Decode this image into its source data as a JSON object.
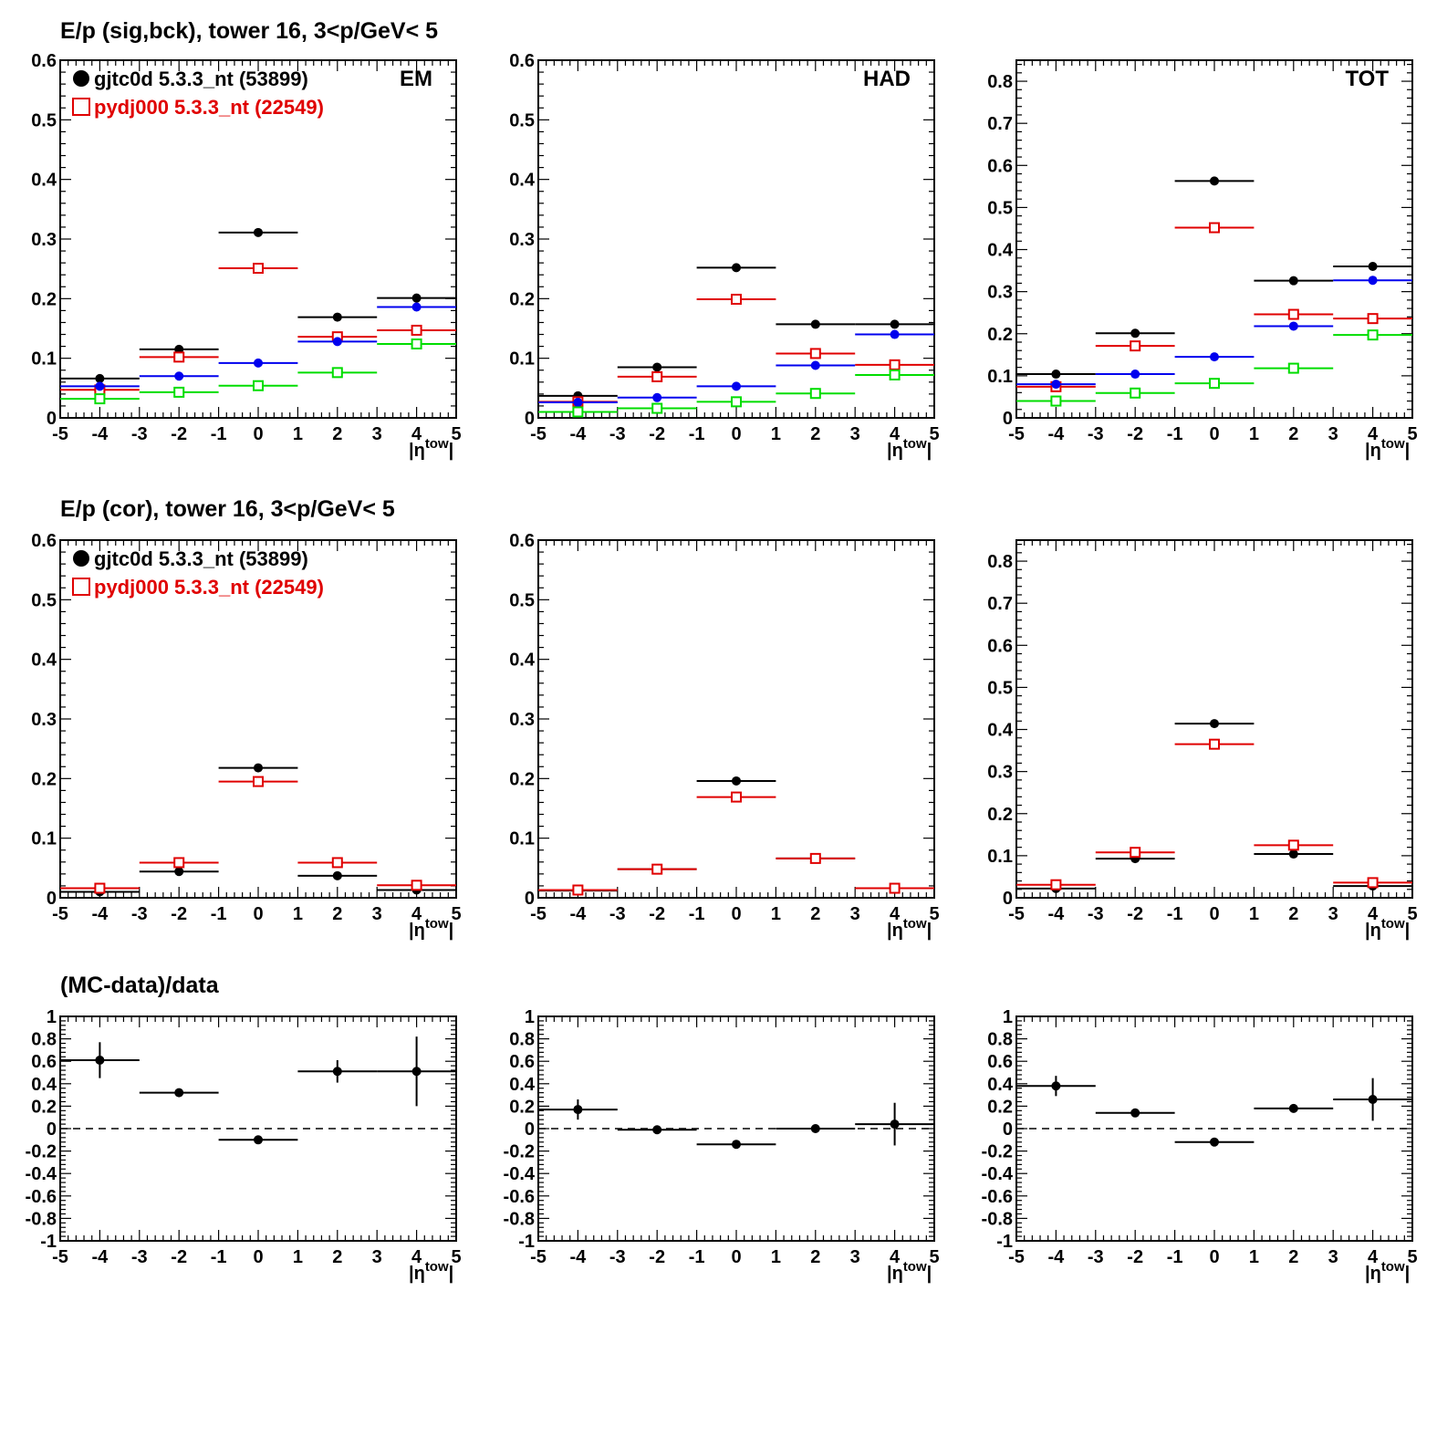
{
  "row_titles": [
    "E/p (sig,bck), tower 16,  3<p/GeV< 5",
    "E/p (cor), tower 16,  3<p/GeV< 5",
    "(MC-data)/data"
  ],
  "legend": {
    "data_label": "gjtc0d 5.3.3_nt (53899)",
    "mc_label": "pydj000 5.3.3_nt (22549)"
  },
  "colors": {
    "data": "#000000",
    "mc": "#e00000",
    "blue": "#0000ee",
    "green": "#00dd00"
  },
  "chart_data": [
    {
      "type": "scatter",
      "row": 0,
      "col": 0,
      "panel_label": "EM",
      "xlabel": "|ηtow|",
      "xlim": [
        -5,
        5
      ],
      "ylim": [
        0,
        0.6
      ],
      "x_ticks": [
        -5,
        -4,
        -3,
        -2,
        -1,
        0,
        1,
        2,
        3,
        4,
        5
      ],
      "y_ticks": [
        "0",
        "0.1",
        "0.2",
        "0.3",
        "0.4",
        "0.5",
        "0.6"
      ],
      "x": [
        -4,
        -2,
        0,
        2,
        4
      ],
      "bin_half_width": 1,
      "series": [
        {
          "name": "gjtc0d 5.3.3_nt (53899)",
          "color": "#000000",
          "marker": "dot",
          "values": [
            0.066,
            0.115,
            0.311,
            0.169,
            0.201
          ]
        },
        {
          "name": "pydj000 5.3.3_nt (22549)",
          "color": "#e00000",
          "marker": "square",
          "values": [
            0.047,
            0.102,
            0.251,
            0.136,
            0.147
          ]
        },
        {
          "color": "#0000ee",
          "marker": "dot",
          "values": [
            0.053,
            0.07,
            0.092,
            0.128,
            0.186
          ]
        },
        {
          "color": "#00dd00",
          "marker": "square",
          "values": [
            0.032,
            0.043,
            0.054,
            0.076,
            0.124
          ]
        }
      ]
    },
    {
      "type": "scatter",
      "row": 0,
      "col": 1,
      "panel_label": "HAD",
      "xlabel": "|ηtow|",
      "xlim": [
        -5,
        5
      ],
      "ylim": [
        0,
        0.6
      ],
      "x_ticks": [
        -5,
        -4,
        -3,
        -2,
        -1,
        0,
        1,
        2,
        3,
        4,
        5
      ],
      "y_ticks": [
        "0",
        "0.1",
        "0.2",
        "0.3",
        "0.4",
        "0.5",
        "0.6"
      ],
      "x": [
        -4,
        -2,
        0,
        2,
        4
      ],
      "bin_half_width": 1,
      "series": [
        {
          "color": "#000000",
          "marker": "dot",
          "values": [
            0.037,
            0.085,
            0.252,
            0.157,
            0.157
          ]
        },
        {
          "color": "#e00000",
          "marker": "square",
          "values": [
            0.027,
            0.069,
            0.199,
            0.108,
            0.089
          ]
        },
        {
          "color": "#0000ee",
          "marker": "dot",
          "values": [
            0.026,
            0.034,
            0.053,
            0.088,
            0.14
          ]
        },
        {
          "color": "#00dd00",
          "marker": "square",
          "values": [
            0.01,
            0.016,
            0.027,
            0.041,
            0.072
          ]
        }
      ]
    },
    {
      "type": "scatter",
      "row": 0,
      "col": 2,
      "panel_label": "TOT",
      "xlabel": "|ηtow|",
      "xlim": [
        -5,
        5
      ],
      "ylim": [
        0,
        0.85
      ],
      "x_ticks": [
        -5,
        -4,
        -3,
        -2,
        -1,
        0,
        1,
        2,
        3,
        4,
        5
      ],
      "y_ticks": [
        "0",
        "0.1",
        "0.2",
        "0.3",
        "0.4",
        "0.5",
        "0.6",
        "0.7",
        "0.8"
      ],
      "x": [
        -4,
        -2,
        0,
        2,
        4
      ],
      "bin_half_width": 1,
      "series": [
        {
          "color": "#000000",
          "marker": "dot",
          "values": [
            0.104,
            0.201,
            0.563,
            0.326,
            0.36
          ]
        },
        {
          "color": "#e00000",
          "marker": "square",
          "values": [
            0.074,
            0.171,
            0.452,
            0.246,
            0.236
          ]
        },
        {
          "color": "#0000ee",
          "marker": "dot",
          "values": [
            0.08,
            0.104,
            0.145,
            0.218,
            0.327
          ]
        },
        {
          "color": "#00dd00",
          "marker": "square",
          "values": [
            0.04,
            0.059,
            0.082,
            0.118,
            0.197
          ]
        }
      ]
    },
    {
      "type": "scatter",
      "row": 1,
      "col": 0,
      "xlabel": "|ηtow|",
      "xlim": [
        -5,
        5
      ],
      "ylim": [
        0,
        0.6
      ],
      "x_ticks": [
        -5,
        -4,
        -3,
        -2,
        -1,
        0,
        1,
        2,
        3,
        4,
        5
      ],
      "y_ticks": [
        "0",
        "0.1",
        "0.2",
        "0.3",
        "0.4",
        "0.5",
        "0.6"
      ],
      "x": [
        -4,
        -2,
        0,
        2,
        4
      ],
      "bin_half_width": 1,
      "series": [
        {
          "name": "gjtc0d 5.3.3_nt (53899)",
          "color": "#000000",
          "marker": "dot",
          "values": [
            0.01,
            0.044,
            0.218,
            0.037,
            0.013
          ]
        },
        {
          "name": "pydj000 5.3.3_nt (22549)",
          "color": "#e00000",
          "marker": "square",
          "values": [
            0.016,
            0.059,
            0.195,
            0.059,
            0.021
          ]
        }
      ]
    },
    {
      "type": "scatter",
      "row": 1,
      "col": 1,
      "xlabel": "|ηtow|",
      "xlim": [
        -5,
        5
      ],
      "ylim": [
        0,
        0.6
      ],
      "x_ticks": [
        -5,
        -4,
        -3,
        -2,
        -1,
        0,
        1,
        2,
        3,
        4,
        5
      ],
      "y_ticks": [
        "0",
        "0.1",
        "0.2",
        "0.3",
        "0.4",
        "0.5",
        "0.6"
      ],
      "x": [
        -4,
        -2,
        0,
        2,
        4
      ],
      "bin_half_width": 1,
      "series": [
        {
          "color": "#000000",
          "marker": "dot",
          "values": [
            0.012,
            0.048,
            0.196,
            0.066,
            0.016
          ]
        },
        {
          "color": "#e00000",
          "marker": "square",
          "values": [
            0.013,
            0.048,
            0.169,
            0.066,
            0.016
          ]
        }
      ]
    },
    {
      "type": "scatter",
      "row": 1,
      "col": 2,
      "xlabel": "|ηtow|",
      "xlim": [
        -5,
        5
      ],
      "ylim": [
        0,
        0.85
      ],
      "x_ticks": [
        -5,
        -4,
        -3,
        -2,
        -1,
        0,
        1,
        2,
        3,
        4,
        5
      ],
      "y_ticks": [
        "0",
        "0.1",
        "0.2",
        "0.3",
        "0.4",
        "0.5",
        "0.6",
        "0.7",
        "0.8"
      ],
      "x": [
        -4,
        -2,
        0,
        2,
        4
      ],
      "bin_half_width": 1,
      "series": [
        {
          "color": "#000000",
          "marker": "dot",
          "values": [
            0.022,
            0.093,
            0.414,
            0.104,
            0.028
          ]
        },
        {
          "color": "#e00000",
          "marker": "square",
          "values": [
            0.031,
            0.108,
            0.365,
            0.125,
            0.036
          ]
        }
      ]
    },
    {
      "type": "scatter",
      "row": 2,
      "col": 0,
      "xlabel": "|ηtow|",
      "xlim": [
        -5,
        5
      ],
      "ylim": [
        -1,
        1
      ],
      "zero_line": true,
      "x_ticks": [
        -5,
        -4,
        -3,
        -2,
        -1,
        0,
        1,
        2,
        3,
        4,
        5
      ],
      "y_ticks": [
        "-1",
        "-0.8",
        "-0.6",
        "-0.4",
        "-0.2",
        "0",
        "0.2",
        "0.4",
        "0.6",
        "0.8",
        "1"
      ],
      "x": [
        -4,
        -2,
        0,
        2,
        4
      ],
      "bin_half_width": 1,
      "series": [
        {
          "color": "#000000",
          "marker": "dot",
          "values": [
            0.61,
            0.32,
            -0.1,
            0.51,
            0.51
          ],
          "errors": [
            0.16,
            0.03,
            0.02,
            0.1,
            0.31
          ]
        }
      ]
    },
    {
      "type": "scatter",
      "row": 2,
      "col": 1,
      "xlabel": "|ηtow|",
      "xlim": [
        -5,
        5
      ],
      "ylim": [
        -1,
        1
      ],
      "zero_line": true,
      "x_ticks": [
        -5,
        -4,
        -3,
        -2,
        -1,
        0,
        1,
        2,
        3,
        4,
        5
      ],
      "y_ticks": [
        "-1",
        "-0.8",
        "-0.6",
        "-0.4",
        "-0.2",
        "0",
        "0.2",
        "0.4",
        "0.6",
        "0.8",
        "1"
      ],
      "x": [
        -4,
        -2,
        0,
        2,
        4
      ],
      "bin_half_width": 1,
      "series": [
        {
          "color": "#000000",
          "marker": "dot",
          "values": [
            0.17,
            -0.01,
            -0.14,
            0.0,
            0.04
          ],
          "errors": [
            0.09,
            0.02,
            0.02,
            0.02,
            0.19
          ]
        }
      ]
    },
    {
      "type": "scatter",
      "row": 2,
      "col": 2,
      "xlabel": "|ηtow|",
      "xlim": [
        -5,
        5
      ],
      "ylim": [
        -1,
        1
      ],
      "zero_line": true,
      "x_ticks": [
        -5,
        -4,
        -3,
        -2,
        -1,
        0,
        1,
        2,
        3,
        4,
        5
      ],
      "y_ticks": [
        "-1",
        "-0.8",
        "-0.6",
        "-0.4",
        "-0.2",
        "0",
        "0.2",
        "0.4",
        "0.6",
        "0.8",
        "1"
      ],
      "x": [
        -4,
        -2,
        0,
        2,
        4
      ],
      "bin_half_width": 1,
      "series": [
        {
          "color": "#000000",
          "marker": "dot",
          "values": [
            0.38,
            0.14,
            -0.12,
            0.18,
            0.26
          ],
          "errors": [
            0.09,
            0.02,
            0.02,
            0.03,
            0.19
          ]
        }
      ]
    }
  ]
}
